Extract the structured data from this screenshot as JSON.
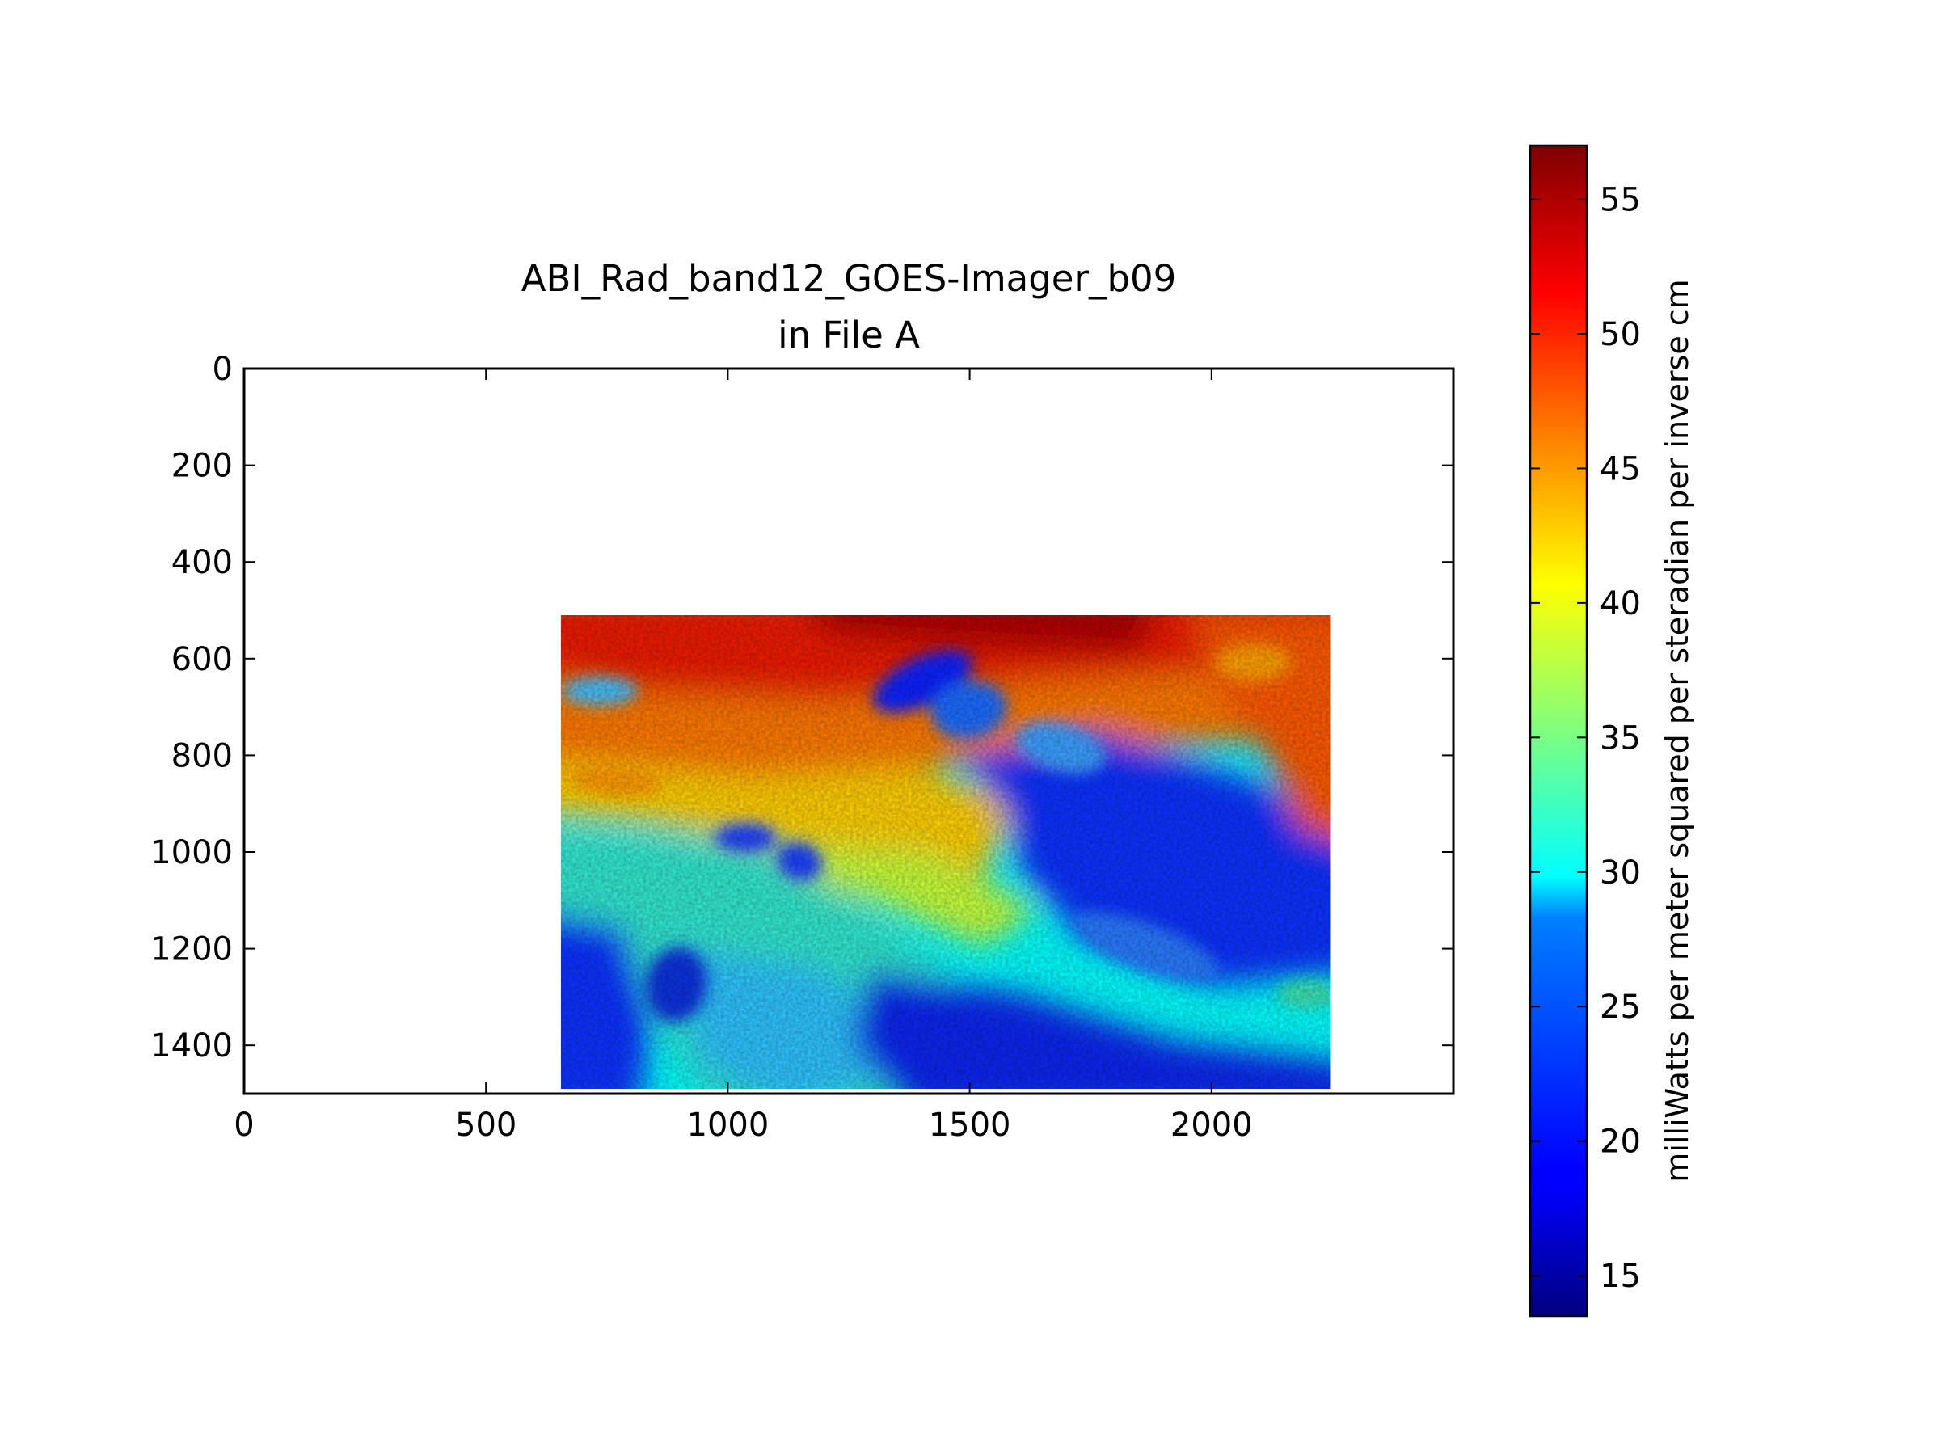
{
  "chart_data": {
    "type": "heatmap",
    "title_line1": "ABI_Rad_band12_GOES-Imager_b09",
    "title_line2": "in File A",
    "xlabel": "",
    "ylabel": "",
    "xlim": [
      0,
      2500
    ],
    "ylim": [
      1500,
      0
    ],
    "x_ticks": [
      0,
      500,
      1000,
      1500,
      2000
    ],
    "y_ticks": [
      0,
      200,
      400,
      600,
      800,
      1000,
      1200,
      1400
    ],
    "data_extent": {
      "x": [
        655,
        2245
      ],
      "y": [
        510,
        1490
      ]
    },
    "colormap": "jet",
    "grid": false,
    "colorbar": {
      "label": "milliWatts per meter squared per steradian per inverse cm",
      "range": [
        13.5,
        57
      ],
      "ticks": [
        15,
        20,
        25,
        30,
        35,
        40,
        45,
        50,
        55
      ]
    },
    "colors": {
      "jet_low": "#00007f",
      "jet_blue": "#0000ff",
      "jet_cyan": "#00ffff",
      "jet_yellow": "#ffff00",
      "jet_red": "#ff0000",
      "jet_high": "#7f0000"
    }
  }
}
